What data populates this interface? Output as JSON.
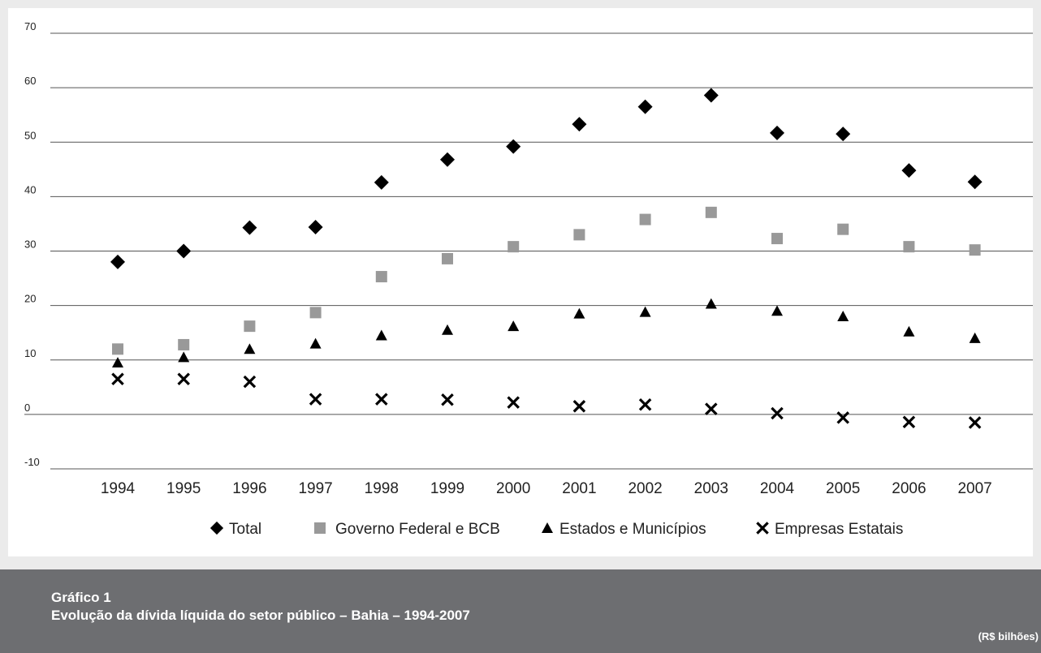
{
  "chart_data": {
    "type": "scatter",
    "categories": [
      "1994",
      "1995",
      "1996",
      "1997",
      "1998",
      "1999",
      "2000",
      "2001",
      "2002",
      "2003",
      "2004",
      "2005",
      "2006",
      "2007"
    ],
    "series": [
      {
        "name": "Total",
        "marker": "diamond",
        "color": "#000000",
        "values": [
          28.0,
          30.0,
          34.3,
          34.4,
          42.6,
          46.8,
          49.2,
          53.3,
          56.5,
          58.6,
          51.7,
          51.5,
          44.8,
          42.7
        ]
      },
      {
        "name": "Governo Federal e BCB",
        "marker": "square",
        "color": "#999999",
        "values": [
          12.0,
          12.8,
          16.2,
          18.7,
          25.3,
          28.6,
          30.8,
          33.0,
          35.8,
          37.1,
          32.3,
          34.0,
          30.8,
          30.2
        ]
      },
      {
        "name": "Estados e Municípios",
        "marker": "triangle",
        "color": "#000000",
        "values": [
          9.5,
          10.5,
          12.0,
          13.0,
          14.5,
          15.5,
          16.2,
          18.5,
          18.8,
          20.3,
          19.0,
          18.0,
          15.2,
          14.0
        ]
      },
      {
        "name": "Empresas Estatais",
        "marker": "x",
        "color": "#000000",
        "values": [
          6.5,
          6.5,
          6.0,
          2.8,
          2.8,
          2.7,
          2.2,
          1.5,
          1.8,
          1.0,
          0.2,
          -0.6,
          -1.4,
          -1.5
        ]
      }
    ],
    "y_ticks": [
      "-10",
      "0",
      "10",
      "20",
      "30",
      "40",
      "50",
      "60",
      "70"
    ],
    "ylim": [
      -10,
      70
    ],
    "grid": "horizontal",
    "legend_position": "bottom"
  },
  "caption": {
    "label": "Gráfico 1",
    "title": "Evolução da dívida líquida do setor público – Bahia – 1994-2007",
    "unit": "(R$ bilhões)"
  },
  "colors": {
    "background": "#ebebeb",
    "plot_background": "#ffffff",
    "caption_background": "#6d6e71",
    "gridline": "#555555"
  }
}
